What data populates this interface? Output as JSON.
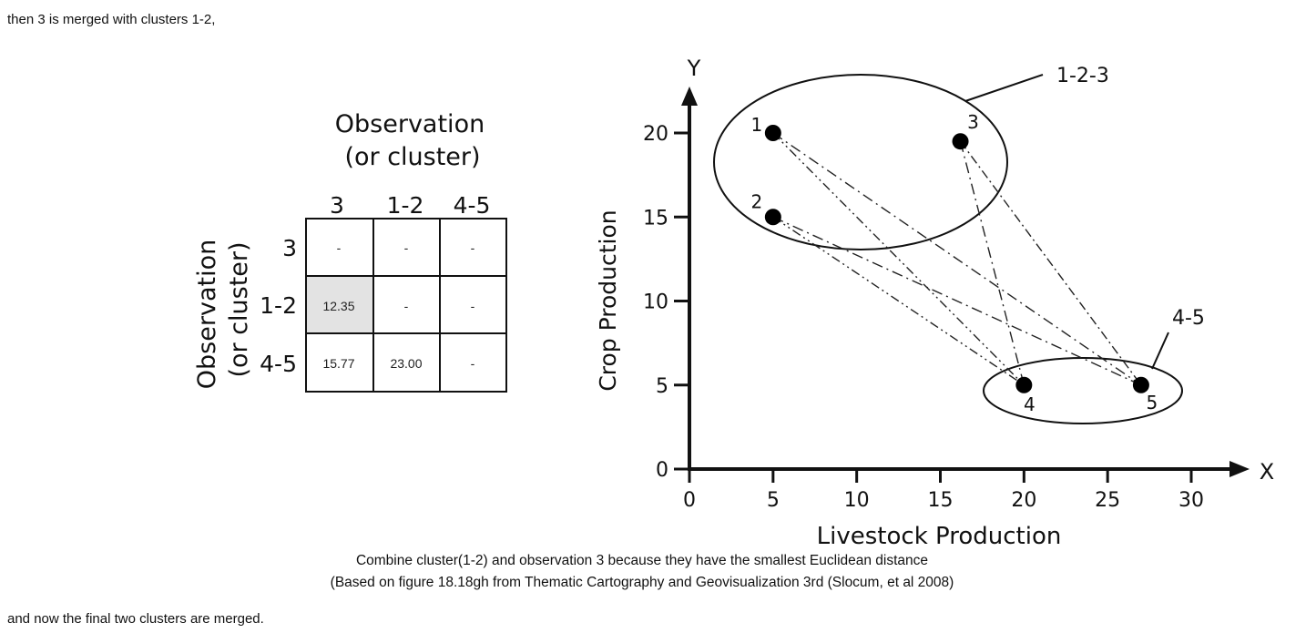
{
  "page": {
    "intro": "then 3 is merged with clusters 1-2,",
    "outro": "and now the final two clusters are merged."
  },
  "matrix": {
    "col_title_line1": "Observation",
    "col_title_line2": "(or cluster)",
    "row_title_line1": "Observation",
    "row_title_line2": "(or cluster)",
    "col_headers": [
      "3",
      "1-2",
      "4-5"
    ],
    "row_headers": [
      "3",
      "1-2",
      "4-5"
    ],
    "cells": [
      [
        "-",
        "-",
        "-"
      ],
      [
        "12.35",
        "-",
        "-"
      ],
      [
        "15.77",
        "23.00",
        "-"
      ]
    ],
    "highlight_color": "#e3e3e3"
  },
  "chart_data": {
    "type": "scatter",
    "xlabel": "Livestock Production",
    "ylabel": "Crop Production",
    "x_axis_letter": "X",
    "y_axis_letter": "Y",
    "xlim": [
      0,
      30
    ],
    "ylim": [
      0,
      20
    ],
    "x_ticks": [
      0,
      5,
      10,
      15,
      20,
      25,
      30
    ],
    "y_ticks": [
      0,
      5,
      10,
      15,
      20
    ],
    "points": [
      {
        "label": "1",
        "x": 5,
        "y": 20
      },
      {
        "label": "2",
        "x": 5,
        "y": 15
      },
      {
        "label": "3",
        "x": 16.2,
        "y": 19.5
      },
      {
        "label": "4",
        "x": 20,
        "y": 5
      },
      {
        "label": "5",
        "x": 27,
        "y": 5
      }
    ],
    "clusters": [
      {
        "label": "1-2-3",
        "members": [
          "1",
          "2",
          "3"
        ]
      },
      {
        "label": "4-5",
        "members": [
          "4",
          "5"
        ]
      }
    ],
    "links": [
      [
        "1",
        "4"
      ],
      [
        "1",
        "5"
      ],
      [
        "2",
        "4"
      ],
      [
        "2",
        "5"
      ],
      [
        "3",
        "4"
      ],
      [
        "3",
        "5"
      ]
    ]
  },
  "caption": {
    "line1": "Combine cluster(1-2) and observation 3 because they have the smallest Euclidean distance",
    "line2": "(Based on figure 18.18gh from Thematic Cartography and Geovisualization 3rd (Slocum, et al 2008)"
  }
}
